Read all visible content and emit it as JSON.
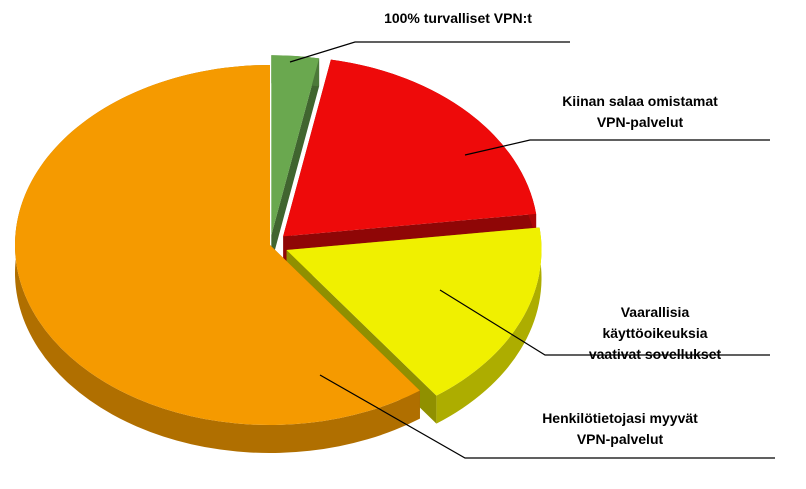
{
  "chart_data": {
    "type": "pie",
    "categories": [
      "100% turvalliset VPN:t",
      "Kiinan salaa omistamat\nVPN-palvelut",
      "Vaarallisia käyttöoikeuksia\nvaativat sovellukset",
      "Henkilötietojasi myyvät\nVPN-palvelut"
    ],
    "values": [
      3,
      20,
      17,
      60
    ],
    "colors": [
      "#6aa84f",
      "#ee0a0a",
      "#f0f000",
      "#f59a00"
    ]
  }
}
